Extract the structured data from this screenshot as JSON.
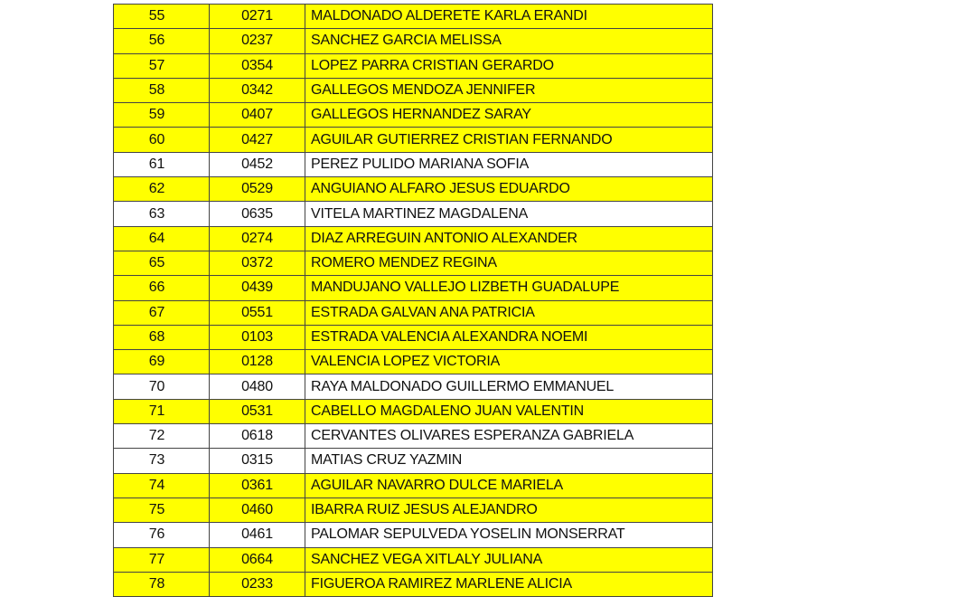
{
  "table": {
    "rows": [
      {
        "number": "55",
        "code": "0271",
        "name": "MALDONADO ALDERETE KARLA ERANDI",
        "highlighted": true
      },
      {
        "number": "56",
        "code": "0237",
        "name": "SANCHEZ GARCIA MELISSA",
        "highlighted": true
      },
      {
        "number": "57",
        "code": "0354",
        "name": "LOPEZ PARRA CRISTIAN GERARDO",
        "highlighted": true
      },
      {
        "number": "58",
        "code": "0342",
        "name": "GALLEGOS MENDOZA JENNIFER",
        "highlighted": true
      },
      {
        "number": "59",
        "code": "0407",
        "name": "GALLEGOS HERNANDEZ SARAY",
        "highlighted": true
      },
      {
        "number": "60",
        "code": "0427",
        "name": "AGUILAR GUTIERREZ CRISTIAN FERNANDO",
        "highlighted": true
      },
      {
        "number": "61",
        "code": "0452",
        "name": "PEREZ PULIDO MARIANA SOFIA",
        "highlighted": false
      },
      {
        "number": "62",
        "code": "0529",
        "name": "ANGUIANO ALFARO JESUS EDUARDO",
        "highlighted": true
      },
      {
        "number": "63",
        "code": "0635",
        "name": "VITELA MARTINEZ MAGDALENA",
        "highlighted": false
      },
      {
        "number": "64",
        "code": "0274",
        "name": "DIAZ ARREGUIN ANTONIO ALEXANDER",
        "highlighted": true
      },
      {
        "number": "65",
        "code": "0372",
        "name": "ROMERO MENDEZ REGINA",
        "highlighted": true
      },
      {
        "number": "66",
        "code": "0439",
        "name": "MANDUJANO VALLEJO LIZBETH GUADALUPE",
        "highlighted": true
      },
      {
        "number": "67",
        "code": "0551",
        "name": "ESTRADA GALVAN ANA PATRICIA",
        "highlighted": true
      },
      {
        "number": "68",
        "code": "0103",
        "name": "ESTRADA VALENCIA ALEXANDRA NOEMI",
        "highlighted": true
      },
      {
        "number": "69",
        "code": "0128",
        "name": "VALENCIA LOPEZ VICTORIA",
        "highlighted": true
      },
      {
        "number": "70",
        "code": "0480",
        "name": "RAYA MALDONADO GUILLERMO EMMANUEL",
        "highlighted": false
      },
      {
        "number": "71",
        "code": "0531",
        "name": "CABELLO MAGDALENO JUAN VALENTIN",
        "highlighted": true
      },
      {
        "number": "72",
        "code": "0618",
        "name": "CERVANTES OLIVARES ESPERANZA GABRIELA",
        "highlighted": false
      },
      {
        "number": "73",
        "code": "0315",
        "name": "MATIAS CRUZ YAZMIN",
        "highlighted": false
      },
      {
        "number": "74",
        "code": "0361",
        "name": "AGUILAR NAVARRO DULCE MARIELA",
        "highlighted": true
      },
      {
        "number": "75",
        "code": "0460",
        "name": "IBARRA RUIZ JESUS ALEJANDRO",
        "highlighted": true
      },
      {
        "number": "76",
        "code": "0461",
        "name": "PALOMAR SEPULVEDA YOSELIN MONSERRAT",
        "highlighted": false
      },
      {
        "number": "77",
        "code": "0664",
        "name": "SANCHEZ VEGA XITLALY JULIANA",
        "highlighted": true
      },
      {
        "number": "78",
        "code": "0233",
        "name": "FIGUEROA RAMIREZ MARLENE ALICIA",
        "highlighted": true
      }
    ]
  }
}
